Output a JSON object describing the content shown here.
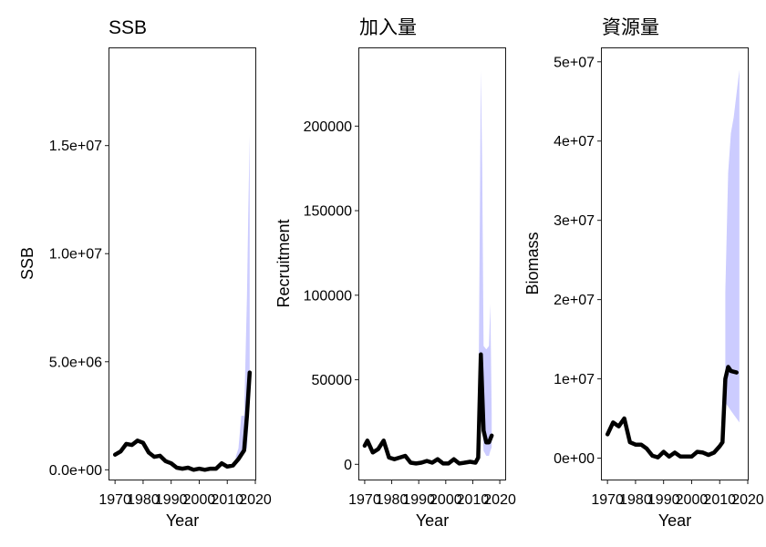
{
  "chart_data": [
    {
      "type": "line",
      "title": "SSB",
      "xlabel": "Year",
      "ylabel": "SSB",
      "xlim": [
        1968,
        2020
      ],
      "ylim": [
        -450000,
        19500000
      ],
      "xticks": [
        1970,
        1980,
        1990,
        2000,
        2010,
        2020
      ],
      "xtick_labels": [
        "1970",
        "1980",
        "1990",
        "2000",
        "2010",
        "2020"
      ],
      "yticks": [
        0,
        5000000,
        10000000,
        15000000
      ],
      "ytick_labels": [
        "0.0e+00",
        "5.0e+06",
        "1.0e+07",
        "1.5e+07"
      ],
      "band_color": "#ccccff",
      "line_color": "#000000",
      "series": [
        {
          "name": "SSB",
          "x": [
            1970,
            1972,
            1974,
            1976,
            1978,
            1980,
            1982,
            1984,
            1986,
            1988,
            1990,
            1992,
            1994,
            1996,
            1998,
            2000,
            2002,
            2004,
            2006,
            2008,
            2010,
            2012,
            2014,
            2016,
            2017,
            2018
          ],
          "y": [
            700000,
            850000,
            1200000,
            1150000,
            1350000,
            1250000,
            800000,
            600000,
            650000,
            400000,
            300000,
            100000,
            50000,
            100000,
            0,
            50000,
            0,
            50000,
            50000,
            300000,
            150000,
            200000,
            500000,
            900000,
            2500000,
            4500000
          ]
        }
      ],
      "band": {
        "x": [
          2013,
          2014,
          2015,
          2016,
          2017,
          2017.5,
          2018
        ],
        "lower": [
          300000,
          500000,
          700000,
          800000,
          1000000,
          2000000,
          4000000
        ],
        "upper": [
          600000,
          1000000,
          2500000,
          2500000,
          8000000,
          12000000,
          15500000
        ]
      }
    },
    {
      "type": "line",
      "title": "加入量",
      "xlabel": "Year",
      "ylabel": "Recruitment",
      "xlim": [
        1968,
        2022
      ],
      "ylim": [
        -9000,
        246000
      ],
      "xticks": [
        1970,
        1980,
        1990,
        2000,
        2010,
        2020
      ],
      "xtick_labels": [
        "1970",
        "1980",
        "1990",
        "2000",
        "2010",
        "2020"
      ],
      "yticks": [
        0,
        50000,
        100000,
        150000,
        200000
      ],
      "ytick_labels": [
        "0",
        "50000",
        "100000",
        "150000",
        "200000"
      ],
      "band_color": "#ccccff",
      "line_color": "#000000",
      "series": [
        {
          "name": "Recruitment",
          "x": [
            1970,
            1971,
            1973,
            1975,
            1977,
            1979,
            1981,
            1983,
            1985,
            1987,
            1989,
            1991,
            1993,
            1995,
            1997,
            1999,
            2001,
            2003,
            2005,
            2007,
            2009,
            2011,
            2012,
            2013,
            2014,
            2015,
            2016,
            2017
          ],
          "y": [
            11000,
            14000,
            7000,
            9000,
            14000,
            4000,
            3000,
            4000,
            5000,
            1000,
            500,
            1000,
            2000,
            1000,
            3000,
            500,
            500,
            3000,
            500,
            1000,
            1500,
            1000,
            4000,
            65000,
            20000,
            13000,
            13000,
            17000
          ]
        }
      ],
      "band": {
        "x": [
          2011,
          2012,
          2013,
          2013.5,
          2014,
          2015,
          2016,
          2016.5,
          2017
        ],
        "lower": [
          500,
          2000,
          40000,
          25000,
          8000,
          5000,
          5000,
          8000,
          10000
        ],
        "upper": [
          2000,
          8000,
          233000,
          175000,
          70000,
          68000,
          70000,
          95000,
          30000
        ]
      }
    },
    {
      "type": "line",
      "title": "資源量",
      "xlabel": "Year",
      "ylabel": "Biomass",
      "xlim": [
        1968,
        2020
      ],
      "ylim": [
        -2700000,
        51700000
      ],
      "xticks": [
        1970,
        1980,
        1990,
        2000,
        2010,
        2020
      ],
      "xtick_labels": [
        "1970",
        "1980",
        "1990",
        "2000",
        "2010",
        "2020"
      ],
      "yticks": [
        0,
        10000000,
        20000000,
        30000000,
        40000000,
        50000000
      ],
      "ytick_labels": [
        "0e+00",
        "1e+07",
        "2e+07",
        "3e+07",
        "4e+07",
        "5e+07"
      ],
      "band_color": "#ccccff",
      "line_color": "#000000",
      "series": [
        {
          "name": "Biomass",
          "x": [
            1970,
            1972,
            1974,
            1976,
            1978,
            1980,
            1982,
            1984,
            1986,
            1988,
            1990,
            1992,
            1994,
            1996,
            1998,
            2000,
            2002,
            2004,
            2006,
            2008,
            2010,
            2011,
            2012,
            2013,
            2014,
            2016
          ],
          "y": [
            3000000,
            4500000,
            4000000,
            5000000,
            2000000,
            1700000,
            1700000,
            1200000,
            300000,
            100000,
            800000,
            200000,
            700000,
            200000,
            200000,
            200000,
            800000,
            700000,
            400000,
            700000,
            1500000,
            2000000,
            10000000,
            11500000,
            11000000,
            10800000
          ]
        }
      ],
      "band": {
        "x": [
          2012,
          2013,
          2014,
          2015,
          2016,
          2017
        ],
        "lower": [
          7000000,
          6500000,
          6000000,
          5500000,
          5000000,
          4500000
        ],
        "upper": [
          21000000,
          36000000,
          41000000,
          43000000,
          46000000,
          49000000
        ]
      }
    }
  ]
}
